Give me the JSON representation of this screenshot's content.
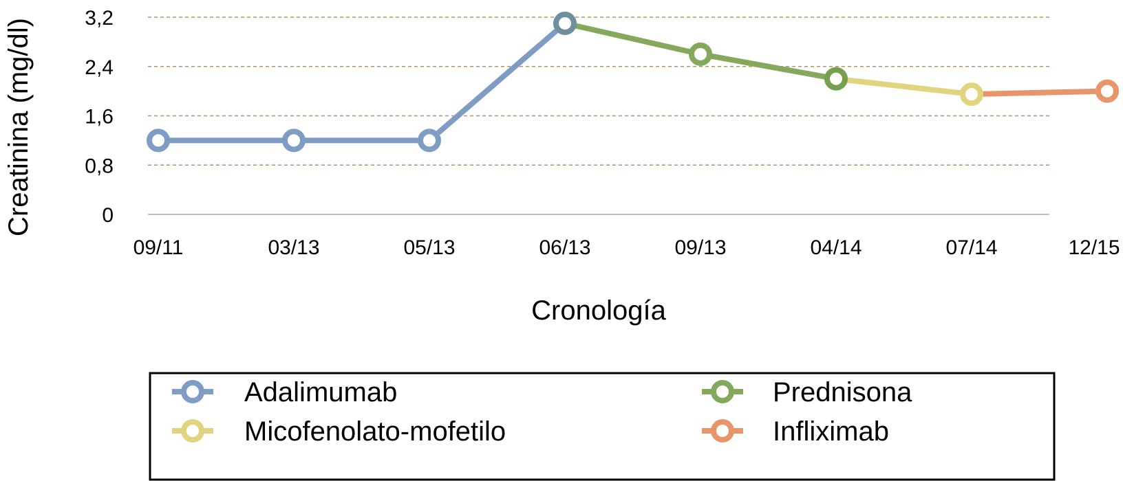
{
  "chart_data": {
    "type": "line",
    "categories": [
      "09/11",
      "03/13",
      "05/13",
      "06/13",
      "09/13",
      "04/14",
      "07/14",
      "12/15"
    ],
    "values": [
      1.2,
      1.2,
      1.2,
      3.1,
      2.6,
      2.2,
      1.95,
      2.0
    ],
    "segments": [
      {
        "name": "Adalimumab",
        "from": 0,
        "to": 3,
        "color": "#7f9cc4"
      },
      {
        "name": "Prednisona",
        "from": 3,
        "to": 5,
        "color": "#84a85c"
      },
      {
        "name": "Micofenolato-mofetilo",
        "from": 5,
        "to": 6,
        "color": "#e0d57e"
      },
      {
        "name": "Infliximab",
        "from": 6,
        "to": 7,
        "color": "#e8956a"
      }
    ],
    "point_colors": [
      "#7f9cc4",
      "#7f9cc4",
      "#7f9cc4",
      "#6e8f9e",
      "#84a85c",
      "#76a04e",
      "#e0d57e",
      "#e8956a"
    ],
    "ylabel": "Creatinina (mg/dl)",
    "xlabel": "Cronología",
    "ylim": [
      0,
      3.2
    ],
    "yticks": [
      0,
      0.8,
      1.6,
      2.4,
      3.2
    ],
    "ytick_labels": [
      "0",
      "0,8",
      "1,6",
      "2,4",
      "3,2"
    ],
    "grid": true,
    "gridline_color": "#b8906a",
    "legend_position": "bottom",
    "legend": [
      {
        "label": "Adalimumab",
        "color": "#7f9cc4"
      },
      {
        "label": "Prednisona",
        "color": "#84a85c"
      },
      {
        "label": "Micofenolato-mofetilo",
        "color": "#e0d57e"
      },
      {
        "label": "Infliximab",
        "color": "#e8956a"
      }
    ]
  }
}
